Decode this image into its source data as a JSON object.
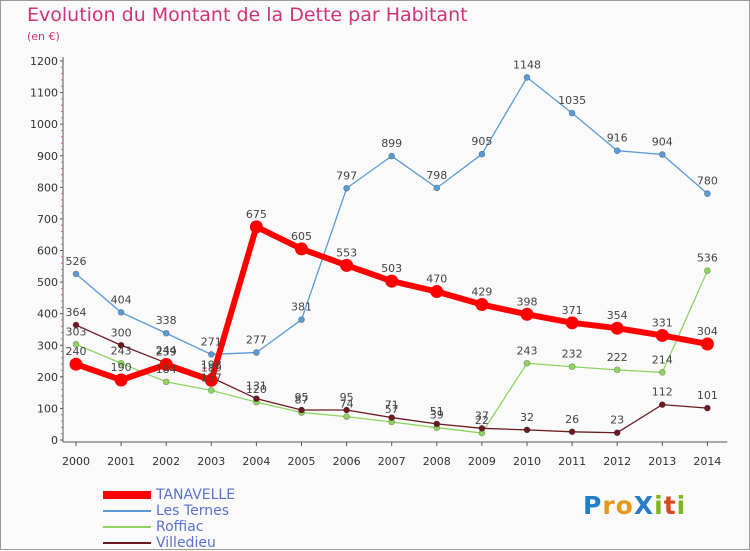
{
  "title": "Evolution du Montant de la Dette par Habitant",
  "subtitle": "(en €)",
  "logo": {
    "text": "ProXiti",
    "letters": [
      "P",
      "r",
      "o",
      "X",
      "i",
      "t",
      "i"
    ],
    "colors": [
      "#1e7fc7",
      "#e39a1c",
      "#e39a1c",
      "#2b7cc6",
      "#7fb51f",
      "#d84a1c",
      "#7fb51f"
    ]
  },
  "chart_data": {
    "type": "line",
    "x": [
      "2000",
      "2001",
      "2002",
      "2003",
      "2004",
      "2005",
      "2006",
      "2007",
      "2008",
      "2009",
      "2010",
      "2011",
      "2012",
      "2013",
      "2014"
    ],
    "ylim": [
      0,
      1200
    ],
    "yticks": [
      0,
      100,
      200,
      300,
      400,
      500,
      600,
      700,
      800,
      900,
      1000,
      1100,
      1200
    ],
    "grid": false,
    "legend_position": "bottom-left",
    "series": [
      {
        "name": "Les Ternes",
        "color": "#5b9bd5",
        "values": [
          526,
          404,
          338,
          271,
          277,
          381,
          797,
          899,
          798,
          905,
          1148,
          1035,
          916,
          904,
          780
        ]
      },
      {
        "name": "Roffiac",
        "color": "#8fd460",
        "values": [
          303,
          243,
          184,
          157,
          120,
          87,
          74,
          57,
          39,
          22,
          243,
          232,
          222,
          214,
          536
        ]
      },
      {
        "name": "Villedieu",
        "color": "#6b1a1f",
        "values": [
          364,
          300,
          244,
          198,
          131,
          95,
          95,
          71,
          51,
          37,
          32,
          26,
          23,
          112,
          101
        ]
      },
      {
        "name": "TANAVELLE",
        "color": "#ff0000",
        "highlight": true,
        "values": [
          240,
          190,
          239,
          189,
          675,
          605,
          553,
          503,
          470,
          429,
          398,
          371,
          354,
          331,
          304
        ]
      }
    ],
    "labels": [
      {
        "series": 0,
        "text": [
          "526",
          "404",
          "338",
          "271",
          "277",
          "381",
          "797",
          "899",
          "798",
          "905",
          "1148",
          "1035",
          "916",
          "904",
          "780"
        ]
      },
      {
        "series": 1,
        "text": [
          "303",
          "243",
          "184",
          "157",
          "120",
          "87",
          "74",
          "57",
          "39",
          "22",
          "243",
          "232",
          "222",
          "214",
          "536"
        ]
      },
      {
        "series": 2,
        "text": [
          "364",
          "300",
          "244",
          "198",
          "131",
          "95",
          "95",
          "71",
          "51",
          "37",
          "32",
          "26",
          "23",
          "112",
          "101"
        ]
      },
      {
        "series": 3,
        "text": [
          "240",
          "190",
          "239",
          "189",
          "675",
          "605",
          "553",
          "503",
          "470",
          "429",
          "398",
          "371",
          "354",
          "331",
          "304"
        ]
      }
    ]
  },
  "legend": [
    {
      "name": "TANAVELLE",
      "color": "#ff0000",
      "thick": true
    },
    {
      "name": "Les Ternes",
      "color": "#5b9bd5",
      "thick": false
    },
    {
      "name": "Roffiac",
      "color": "#8fd460",
      "thick": false
    },
    {
      "name": "Villedieu",
      "color": "#6b1a1f",
      "thick": false
    }
  ]
}
